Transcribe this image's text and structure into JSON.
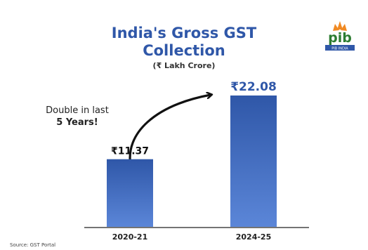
{
  "chart_data": {
    "type": "bar",
    "title_line1": "India's Gross GST",
    "title_line2": "Collection",
    "subtitle": "(₹ Lakh Crore)",
    "categories": [
      "2020-21",
      "2024-25"
    ],
    "values": [
      11.37,
      22.08
    ],
    "value_labels": [
      "₹11.37",
      "₹22.08"
    ],
    "annotation_line1": "Double in last",
    "annotation_line2": "5 Years!",
    "colors": {
      "bar": "#2f57a8",
      "bar_light": "#5b86d8",
      "title": "#2f57a8"
    }
  },
  "logo": {
    "text": "pib",
    "caption": "PIB INDIA"
  },
  "source": "Source: GST Portal"
}
